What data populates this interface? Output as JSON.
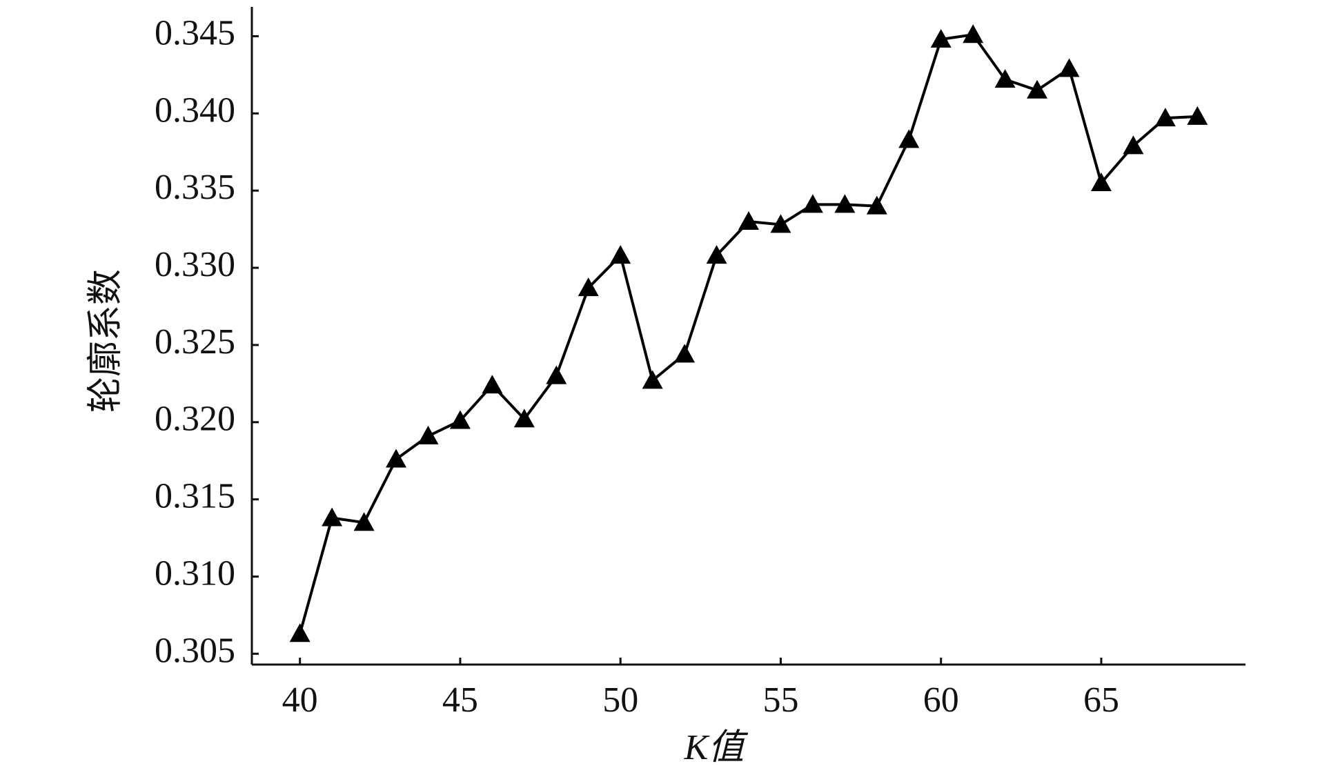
{
  "chart_data": {
    "type": "line",
    "x_label": "K值",
    "y_label": "轮廓系数",
    "x": [
      40,
      41,
      42,
      43,
      44,
      45,
      46,
      47,
      48,
      49,
      50,
      51,
      52,
      53,
      54,
      55,
      56,
      57,
      58,
      59,
      60,
      61,
      62,
      63,
      64,
      65,
      66,
      67,
      68
    ],
    "series": [
      {
        "color": "#000000",
        "marker": "triangle",
        "values": [
          0.3063,
          0.3138,
          0.3135,
          0.3176,
          0.3191,
          0.3201,
          0.3224,
          0.3202,
          0.323,
          0.3287,
          0.3308,
          0.3227,
          0.3244,
          0.3308,
          0.333,
          0.3328,
          0.3341,
          0.3341,
          0.334,
          0.3383,
          0.3448,
          0.3451,
          0.3422,
          0.3415,
          0.3429,
          0.3355,
          0.3379,
          0.3397,
          0.3398
        ]
      }
    ],
    "xlim": [
      38.5,
      69.5
    ],
    "xticks": [
      40,
      45,
      50,
      55,
      60,
      65
    ],
    "ylim": [
      0.3043,
      0.3469
    ],
    "yticks": [
      0.305,
      {
        "value": 0.31,
        "label": "0.310"
      },
      0.315,
      {
        "value": 0.32,
        "label": "0.320"
      },
      0.325,
      {
        "value": 0.33,
        "label": "0.330"
      },
      0.335,
      {
        "value": 0.34,
        "label": "0.340"
      },
      0.345
    ],
    "grid": false
  }
}
